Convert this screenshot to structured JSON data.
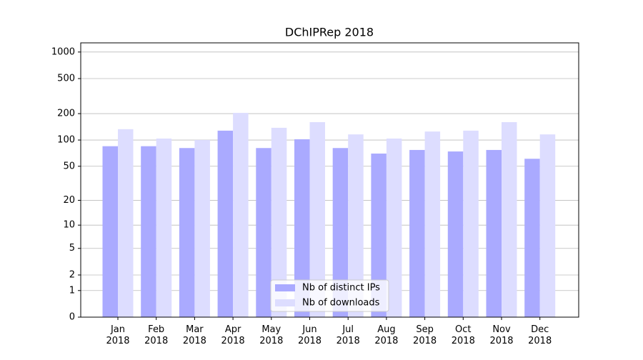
{
  "chart_data": {
    "type": "bar",
    "title": "DChIPRep 2018",
    "categories": [
      "Jan 2018",
      "Feb 2018",
      "Mar 2018",
      "Apr 2018",
      "May 2018",
      "Jun 2018",
      "Jul 2018",
      "Aug 2018",
      "Sep 2018",
      "Oct 2018",
      "Nov 2018",
      "Dec 2018"
    ],
    "series": [
      {
        "name": "Nb of distinct IPs",
        "color": "#aaaaff",
        "values": [
          85,
          85,
          81,
          128,
          81,
          102,
          81,
          70,
          77,
          74,
          77,
          61
        ]
      },
      {
        "name": "Nb of downloads",
        "color": "#ddddff",
        "values": [
          133,
          104,
          100,
          204,
          138,
          160,
          116,
          104,
          125,
          128,
          160,
          116
        ]
      }
    ],
    "yscale": "log1p",
    "ylim": [
      0,
      1270
    ],
    "yticks": [
      0,
      1,
      2,
      5,
      10,
      20,
      50,
      100,
      200,
      500,
      1000
    ],
    "grid": true,
    "legend": "lower center"
  }
}
